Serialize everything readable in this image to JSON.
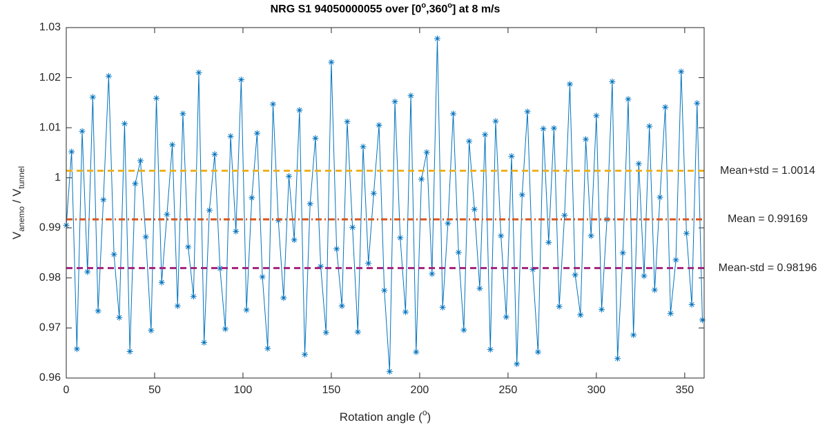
{
  "chart_data": {
    "type": "line",
    "title_parts": [
      "NRG S1 94050000055 over [0",
      "o",
      ",360",
      "o",
      "] at 8 m/s"
    ],
    "xlabel_parts": [
      "Rotation angle (",
      "o",
      ")"
    ],
    "ylabel_parts": [
      "V",
      "anemo",
      " / V",
      "tunnel"
    ],
    "xlim": [
      0,
      361
    ],
    "xticks": [
      0,
      50,
      100,
      150,
      200,
      250,
      300,
      350
    ],
    "ylim": [
      0.96,
      1.03
    ],
    "yticks": [
      0.96,
      0.97,
      0.98,
      0.99,
      1,
      1.01,
      1.02,
      1.03
    ],
    "x": [
      0,
      3,
      6,
      9,
      12,
      15,
      18,
      21,
      24,
      27,
      30,
      33,
      36,
      39,
      42,
      45,
      48,
      51,
      54,
      57,
      60,
      63,
      66,
      69,
      72,
      75,
      78,
      81,
      84,
      87,
      90,
      93,
      96,
      99,
      102,
      105,
      108,
      111,
      114,
      117,
      120,
      123,
      126,
      129,
      132,
      135,
      138,
      141,
      144,
      147,
      150,
      153,
      156,
      159,
      162,
      165,
      168,
      171,
      174,
      177,
      180,
      183,
      186,
      189,
      192,
      195,
      198,
      201,
      204,
      207,
      210,
      213,
      216,
      219,
      222,
      225,
      228,
      231,
      234,
      237,
      240,
      243,
      246,
      249,
      252,
      255,
      258,
      261,
      264,
      267,
      270,
      273,
      276,
      279,
      282,
      285,
      288,
      291,
      294,
      297,
      300,
      303,
      306,
      309,
      312,
      315,
      318,
      321,
      324,
      327,
      330,
      333,
      336,
      339,
      342,
      345,
      348,
      351,
      354,
      357,
      360
    ],
    "series": [
      {
        "color": "#0072bd",
        "values": [
          0.9905,
          1.0052,
          0.9658,
          1.0093,
          0.9812,
          1.0161,
          0.9734,
          0.9956,
          1.0203,
          0.9847,
          0.9721,
          1.0108,
          0.9653,
          0.9988,
          1.0034,
          0.9882,
          0.9695,
          1.0159,
          0.9791,
          0.9927,
          1.0066,
          0.9744,
          1.0128,
          0.9862,
          0.9763,
          1.021,
          0.9671,
          0.9935,
          1.0047,
          0.9819,
          0.9698,
          1.0083,
          0.9893,
          1.0196,
          0.9736,
          0.996,
          1.0089,
          0.9802,
          0.9659,
          1.0147,
          0.9915,
          0.976,
          1.0003,
          0.9876,
          1.0135,
          0.9647,
          0.9948,
          1.0079,
          0.9823,
          0.9691,
          1.0231,
          0.9858,
          0.9744,
          1.0112,
          0.9901,
          0.9692,
          1.0062,
          0.9829,
          0.9969,
          1.0105,
          0.9775,
          0.9613,
          1.0152,
          0.988,
          0.9732,
          1.0164,
          0.9652,
          0.9997,
          1.0051,
          0.9808,
          1.0278,
          0.9741,
          0.9909,
          1.0128,
          0.9851,
          0.9696,
          1.0073,
          0.9937,
          0.9779,
          1.0086,
          0.9657,
          1.0113,
          0.9884,
          0.9722,
          1.0043,
          0.9628,
          0.9966,
          1.0132,
          0.9817,
          0.9652,
          1.0098,
          0.9871,
          1.0099,
          0.9743,
          0.9925,
          1.0187,
          0.9806,
          0.9726,
          1.0077,
          0.9884,
          1.0124,
          0.9737,
          0.9917,
          1.0192,
          0.9639,
          0.985,
          1.0157,
          0.9686,
          1.0028,
          0.9804,
          1.0103,
          0.9776,
          0.9961,
          1.0141,
          0.9729,
          0.9836,
          1.0212,
          0.9889,
          0.9747,
          1.0149,
          0.9716
        ]
      }
    ],
    "reference_lines": [
      {
        "label": "Mean+std = 1.0014",
        "value": 1.0014,
        "color": "#edb120",
        "dash": "dashed"
      },
      {
        "label": "Mean = 0.99169",
        "value": 0.99169,
        "color": "#d95319",
        "dash": "dashdot"
      },
      {
        "label": "Mean-std = 0.98196",
        "value": 0.98196,
        "color": "#a2207a",
        "dash": "dashed"
      }
    ]
  }
}
